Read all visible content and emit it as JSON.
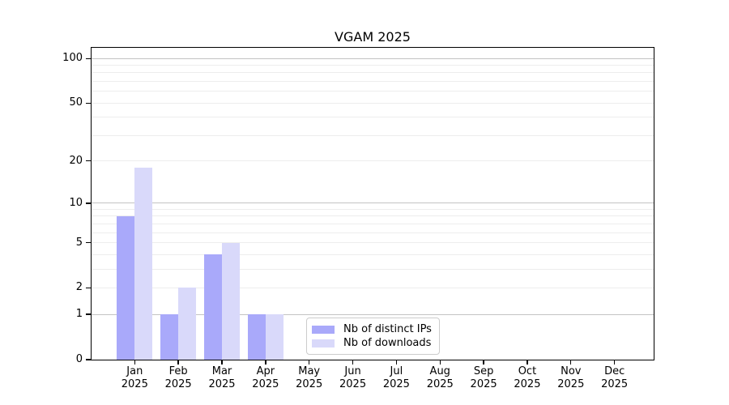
{
  "chart_data": {
    "type": "bar",
    "title": "VGAM 2025",
    "categories": [
      "Jan 2025",
      "Feb 2025",
      "Mar 2025",
      "Apr 2025",
      "May 2025",
      "Jun 2025",
      "Jul 2025",
      "Aug 2025",
      "Sep 2025",
      "Oct 2025",
      "Nov 2025",
      "Dec 2025"
    ],
    "series": [
      {
        "name": "Nb of distinct IPs",
        "color": "#a9a9fa",
        "values": [
          8,
          1,
          4,
          1,
          0,
          0,
          0,
          0,
          0,
          0,
          0,
          0
        ]
      },
      {
        "name": "Nb of downloads",
        "color": "#d9d9fa",
        "values": [
          18,
          2,
          5,
          1,
          0,
          0,
          0,
          0,
          0,
          0,
          0,
          0
        ]
      }
    ],
    "y_axis": {
      "scale": "log1p",
      "tick_values": [
        0,
        1,
        2,
        5,
        10,
        20,
        50,
        100
      ],
      "major_grid_values": [
        1,
        10,
        100
      ],
      "minor_grid_values": [
        2,
        3,
        4,
        5,
        6,
        7,
        8,
        9,
        20,
        30,
        40,
        50,
        60,
        70,
        80,
        90
      ],
      "ylim": [
        0,
        118
      ]
    },
    "x_axis": {
      "ylabel": "",
      "xlabel": ""
    },
    "grid": true,
    "legend": {
      "position": "inside-bottom-center"
    },
    "colors": {
      "axis": "#000000",
      "major_grid": "#c3c3c3",
      "minor_grid": "#ededed",
      "legend_border": "#cccccc",
      "background": "#ffffff"
    }
  }
}
